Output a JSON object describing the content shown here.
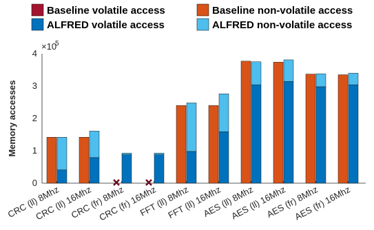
{
  "chart_data": {
    "type": "bar",
    "ylabel": "Memory accesses",
    "xlabel": "",
    "exponent_label": "×10",
    "exponent_power": "5",
    "ylim": [
      0,
      4
    ],
    "yticks": [
      "0",
      "1",
      "2",
      "3",
      "4"
    ],
    "categories": [
      "CRC (ll) 8Mhz",
      "CRC (ll) 16Mhz",
      "CRC (fr) 8Mhz",
      "CRC (fr) 16Mhz",
      "FFT (ll) 8Mhz",
      "FFT (ll) 16Mhz",
      "AES (ll) 8Mhz",
      "AES (ll) 16Mhz",
      "AES (fr) 8Mhz",
      "AES (fr) 16Mhz"
    ],
    "legend_position": "top",
    "series": [
      {
        "name": "Baseline volatile access",
        "color": "#a2142f",
        "values": [
          0,
          0,
          0,
          0,
          0,
          0,
          0,
          0,
          0,
          0
        ]
      },
      {
        "name": "Baseline non-volatile access",
        "color": "#d95319",
        "values": [
          1.42,
          1.42,
          0,
          0,
          2.4,
          2.4,
          3.77,
          3.74,
          3.37,
          3.35
        ]
      },
      {
        "name": "ALFRED volatile access",
        "color": "#0072bd",
        "values": [
          0.41,
          0.79,
          0.88,
          0.88,
          0.98,
          1.59,
          3.04,
          3.14,
          2.98,
          3.04
        ]
      },
      {
        "name": "ALFRED non-volatile access",
        "color": "#4dbeee",
        "values": [
          1.01,
          0.82,
          0.05,
          0.05,
          1.5,
          1.17,
          0.71,
          0.67,
          0.4,
          0.36
        ]
      }
    ],
    "failure_markers": [
      {
        "category": "CRC (fr) 8Mhz",
        "marker": "x"
      },
      {
        "category": "CRC (fr) 16Mhz",
        "marker": "x"
      }
    ]
  }
}
